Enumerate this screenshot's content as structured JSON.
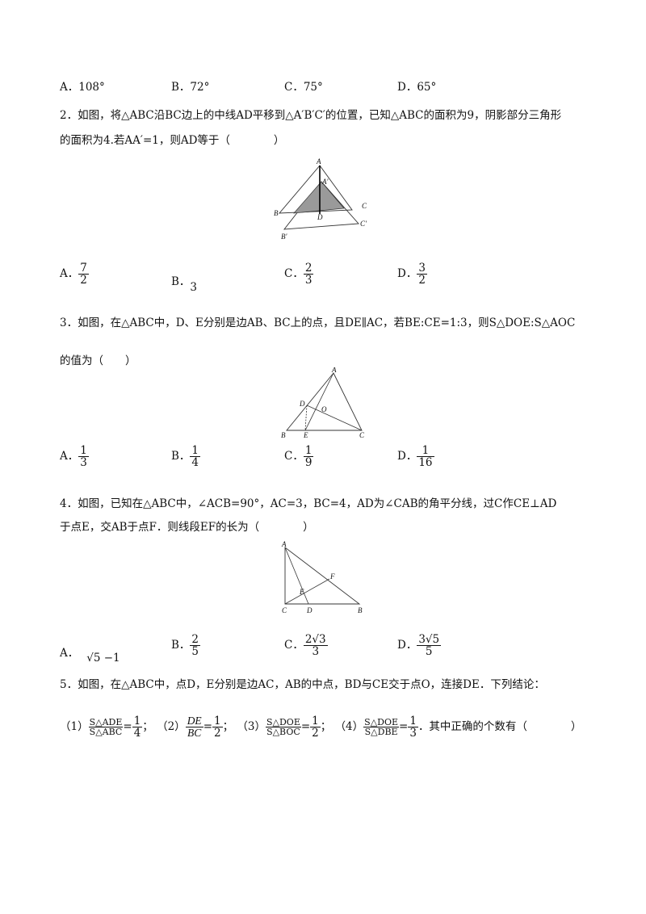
{
  "q1": {
    "options": [
      {
        "letter": "A．",
        "value": "108°"
      },
      {
        "letter": "B．",
        "value": "72°"
      },
      {
        "letter": "C．",
        "value": "75°"
      },
      {
        "letter": "D．",
        "value": "65°"
      }
    ]
  },
  "q2": {
    "line1": "2．如图，将△ABC沿BC边上的中线AD平移到△A′B′C′的位置，已知△ABC的面积为9，阴影部分三角形",
    "line2": "的面积为4.若AA′=1，则AD等于（　　　　）",
    "figure_labels": [
      "A",
      "A′",
      "C",
      "C′",
      "B",
      "D",
      "B′"
    ],
    "options": [
      {
        "letter": "A．",
        "num": "7",
        "den": "2"
      },
      {
        "letter": "B．",
        "value": "3"
      },
      {
        "letter": "C．",
        "num": "2",
        "den": "3"
      },
      {
        "letter": "D．",
        "num": "3",
        "den": "2"
      }
    ]
  },
  "q3": {
    "line1": "3．如图，在△ABC中，D、E分别是边AB、BC上的点，且DE∥AC，若BE:CE=1:3，则S△DOE:S△AOC",
    "line2": "的值为（　　）",
    "figure_labels": [
      "A",
      "D",
      "O",
      "B",
      "E",
      "C"
    ],
    "options": [
      {
        "letter": "A．",
        "num": "1",
        "den": "3"
      },
      {
        "letter": "B．",
        "num": "1",
        "den": "4"
      },
      {
        "letter": "C．",
        "num": "1",
        "den": "9"
      },
      {
        "letter": "D．",
        "num": "1",
        "den": "16"
      }
    ]
  },
  "q4": {
    "line1": "4．如图，已知在△ABC中，∠ACB=90°，AC=3，BC=4，AD为∠CAB的角平分线，过C作CE⊥AD",
    "line2": "于点E，交AB于点F．则线段EF的长为（　　　　）",
    "figure_labels": [
      "A",
      "F",
      "E",
      "C",
      "D",
      "B"
    ],
    "options": [
      {
        "letter": "A．",
        "value": "√5 −1"
      },
      {
        "letter": "B．",
        "num": "2",
        "den": "5"
      },
      {
        "letter": "C．",
        "num": "2√3",
        "den": "3"
      },
      {
        "letter": "D．",
        "num": "3√5",
        "den": "5"
      }
    ]
  },
  "q5": {
    "line1": "5．如图，在△ABC中，点D，E分别是边AC，AB的中点，BD与CE交于点O，连接DE．下列结论：",
    "c1_label": "（1）",
    "c1_num": "S△ADE",
    "c1_den": "S△ABC",
    "c1_eq": "=",
    "c1_val_num": "1",
    "c1_val_den": "4",
    "c1_sep": "；",
    "c2_label": "（2）",
    "c2_num": "DE",
    "c2_den": "BC",
    "c2_eq": "=",
    "c2_val_num": "1",
    "c2_val_den": "2",
    "c2_sep": "；",
    "c3_label": "（3）",
    "c3_num": "S△DOE",
    "c3_den": "S△BOC",
    "c3_eq": "=",
    "c3_val_num": "1",
    "c3_val_den": "2",
    "c3_sep": "；",
    "c4_label": "（4）",
    "c4_num": "S△DOE",
    "c4_den": "S△DBE",
    "c4_eq": "=",
    "c4_val_num": "1",
    "c4_val_den": "3",
    "tail": "．其中正确的个数有（　　　　）"
  }
}
